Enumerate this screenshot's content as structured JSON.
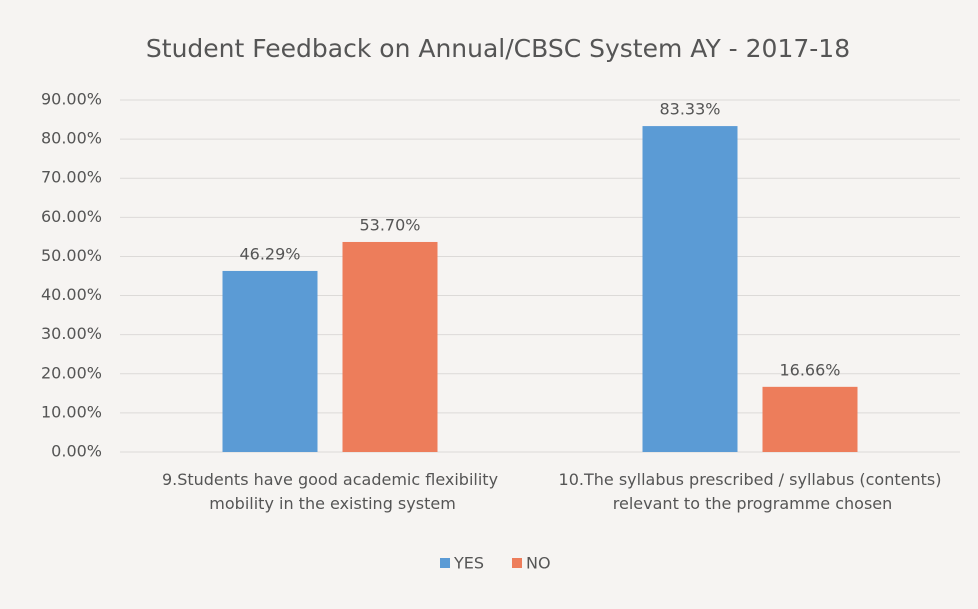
{
  "chart_data": {
    "type": "bar",
    "title": "Student Feedback on Annual/CBSC System AY - 2017-18",
    "categories": [
      "9.Students have good academic flexibility mobility in the existing system",
      "10.The syllabus prescribed / syllabus (contents) relevant to the programme chosen"
    ],
    "series": [
      {
        "name": "YES",
        "color": "#5b9bd5",
        "values": [
          46.29,
          83.33
        ],
        "value_labels": [
          "46.29%",
          "83.33%"
        ]
      },
      {
        "name": "NO",
        "color": "#ed7d5b",
        "values": [
          53.7,
          16.66
        ],
        "value_labels": [
          "53.70%",
          "16.66%"
        ]
      }
    ],
    "ylim": [
      0,
      90
    ],
    "yticks": [
      {
        "value": 0,
        "label": "0.00%"
      },
      {
        "value": 10,
        "label": "10.00%"
      },
      {
        "value": 20,
        "label": "20.00%"
      },
      {
        "value": 30,
        "label": "30.00%"
      },
      {
        "value": 40,
        "label": "40.00%"
      },
      {
        "value": 50,
        "label": "50.00%"
      },
      {
        "value": 60,
        "label": "60.00%"
      },
      {
        "value": 70,
        "label": "70.00%"
      },
      {
        "value": 80,
        "label": "80.00%"
      },
      {
        "value": 90,
        "label": "90.00%"
      }
    ],
    "grid": true,
    "legend": "bottom"
  }
}
